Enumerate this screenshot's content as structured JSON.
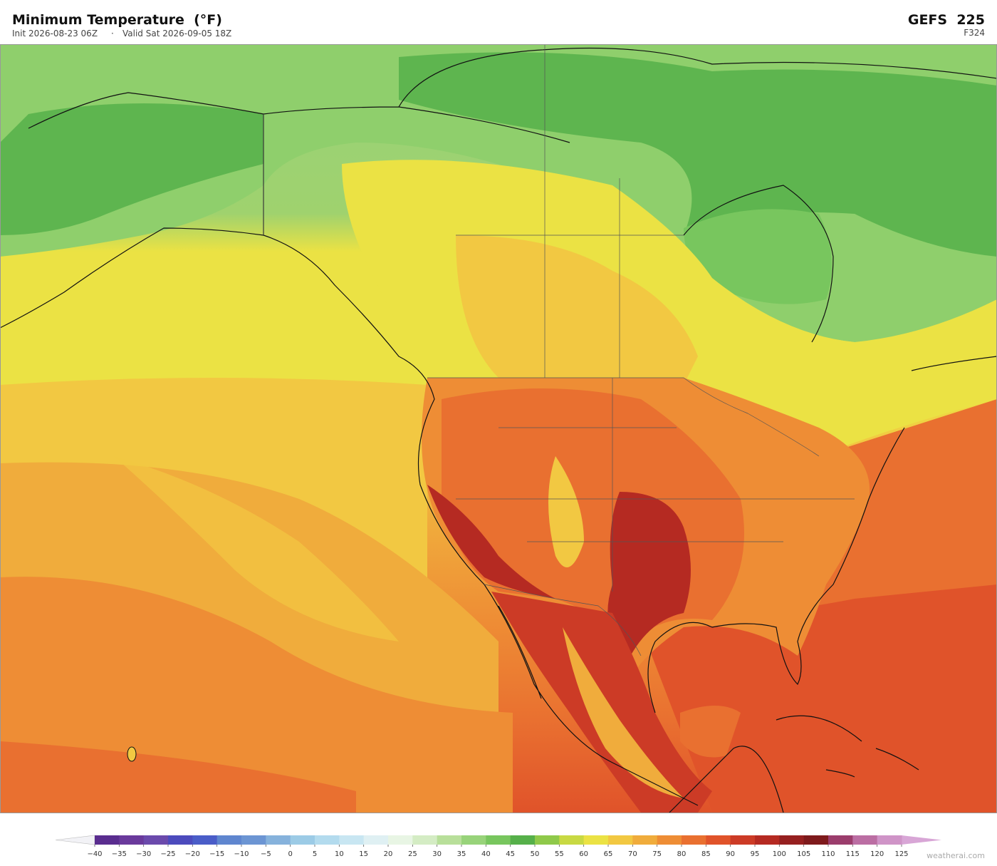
{
  "header": {
    "title": "Minimum Temperature  (°F)",
    "init": "Init 2026-08-23 06Z",
    "separator": "·",
    "valid": "Valid Sat 2026-09-05 18Z",
    "model": "GEFS  225",
    "forecast_hour": "F324"
  },
  "colorbar": {
    "ticks": [
      {
        "value": -40,
        "label": "−40"
      },
      {
        "value": -35,
        "label": "−35"
      },
      {
        "value": -30,
        "label": "−30"
      },
      {
        "value": -25,
        "label": "−25"
      },
      {
        "value": -20,
        "label": "−20"
      },
      {
        "value": -15,
        "label": "−15"
      },
      {
        "value": -10,
        "label": "−10"
      },
      {
        "value": -5,
        "label": "−5"
      },
      0,
      5,
      10,
      15,
      20,
      25,
      30,
      35,
      40,
      45,
      50,
      55,
      60,
      65,
      70,
      75,
      80,
      85,
      90,
      95,
      100,
      105,
      110,
      115,
      120,
      125
    ],
    "colors": [
      "#5a2d8f",
      "#6a3a9c",
      "#6b4aac",
      "#4c4bbd",
      "#4a5dc8",
      "#5f86cf",
      "#6c95d3",
      "#86b2dc",
      "#9ccbe6",
      "#b3dbee",
      "#c8e6f2",
      "#dff0f3",
      "#e8f5e4",
      "#d4ecc4",
      "#b8df9a",
      "#98d37a",
      "#78c65e",
      "#56b04a",
      "#8fc94a",
      "#c8d943",
      "#ebe244",
      "#f2c842",
      "#f0ac3c",
      "#ee8d35",
      "#e97030",
      "#e0532a",
      "#cc3b26",
      "#b52a22",
      "#962020",
      "#7e1a1c",
      "#9b3d6c",
      "#bb6ea3",
      "#cf94c7"
    ],
    "under_color": "#f2f2f6",
    "over_color": "#d8a6d6"
  },
  "watermark": "weatherai.com"
}
